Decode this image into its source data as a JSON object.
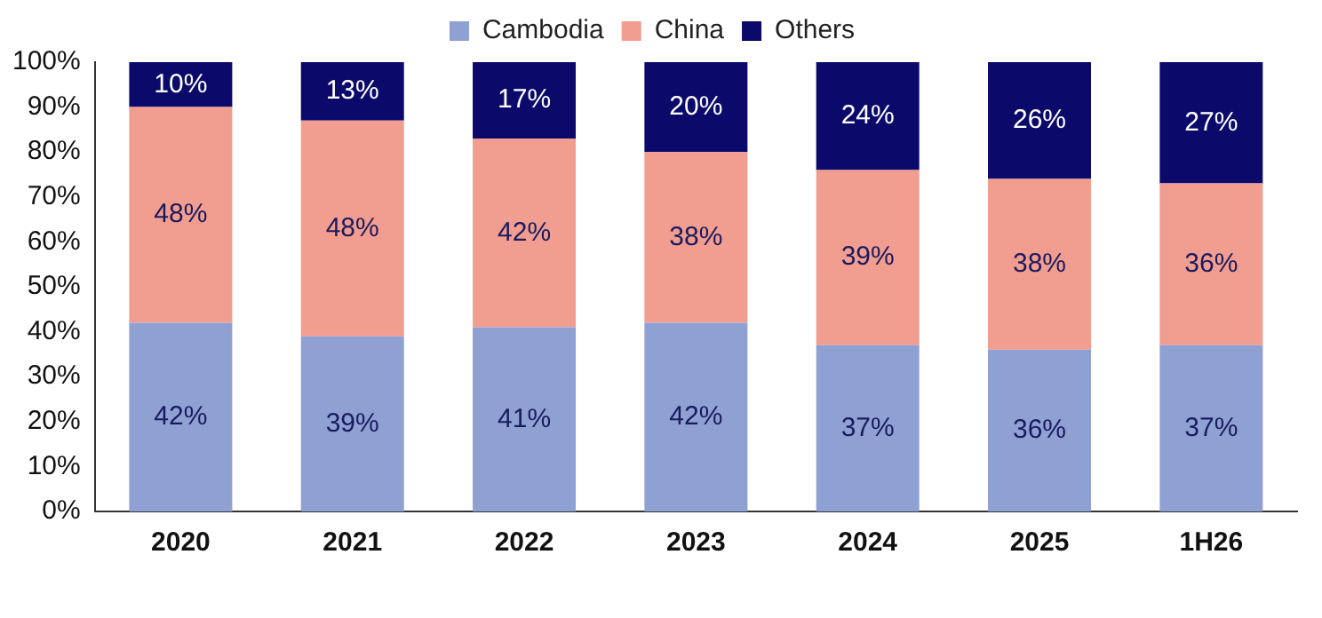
{
  "chart_data": {
    "type": "bar",
    "stacked": true,
    "categories": [
      "2020",
      "2021",
      "2022",
      "2023",
      "2024",
      "2025",
      "1H26"
    ],
    "series": [
      {
        "name": "Cambodia",
        "color": "#8fa1d3",
        "values": [
          42,
          39,
          41,
          42,
          37,
          36,
          37
        ],
        "value_labels": [
          "42%",
          "39%",
          "41%",
          "42%",
          "37%",
          "36%",
          "37%"
        ]
      },
      {
        "name": "China",
        "color": "#f19d8f",
        "values": [
          48,
          48,
          42,
          38,
          39,
          38,
          36
        ],
        "value_labels": [
          "48%",
          "48%",
          "42%",
          "38%",
          "39%",
          "38%",
          "36%"
        ]
      },
      {
        "name": "Others",
        "color": "#0b0a6b",
        "values": [
          10,
          13,
          17,
          20,
          24,
          26,
          27
        ],
        "value_labels": [
          "10%",
          "13%",
          "17%",
          "20%",
          "24%",
          "26%",
          "27%"
        ]
      }
    ],
    "ylim": [
      0,
      100
    ],
    "yticks": [
      {
        "value": 0,
        "label": "0%"
      },
      {
        "value": 10,
        "label": "10%"
      },
      {
        "value": 20,
        "label": "20%"
      },
      {
        "value": 30,
        "label": "30%"
      },
      {
        "value": 40,
        "label": "40%"
      },
      {
        "value": 50,
        "label": "50%"
      },
      {
        "value": 60,
        "label": "60%"
      },
      {
        "value": 70,
        "label": "70%"
      },
      {
        "value": 80,
        "label": "80%"
      },
      {
        "value": 90,
        "label": "90%"
      },
      {
        "value": 100,
        "label": "100%"
      }
    ],
    "grid": false,
    "legend": "top"
  }
}
